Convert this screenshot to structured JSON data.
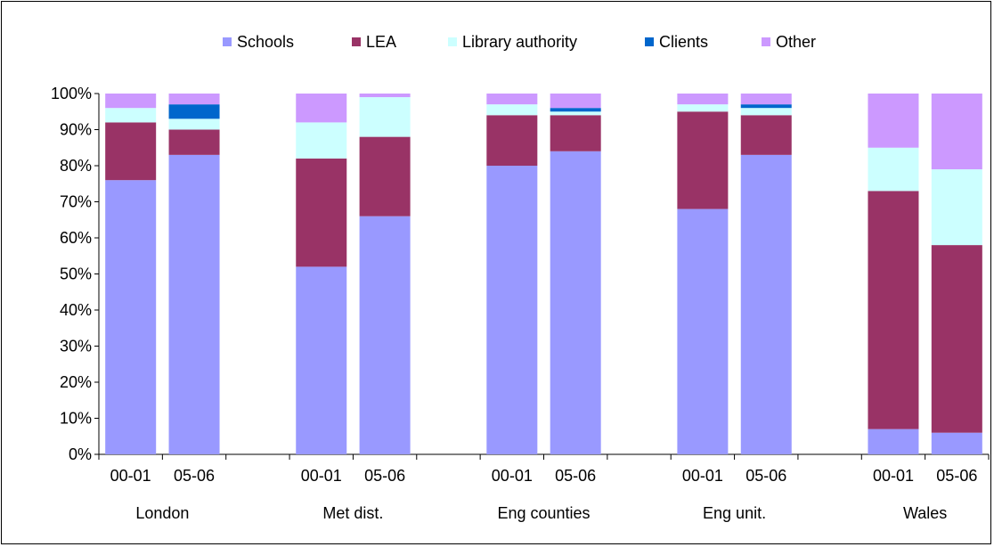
{
  "chart_data": {
    "type": "bar",
    "stacked": true,
    "percent": true,
    "title": "",
    "xlabel": "",
    "ylabel": "",
    "ylim": [
      0,
      100
    ],
    "yticks": [
      "0%",
      "10%",
      "20%",
      "30%",
      "40%",
      "50%",
      "60%",
      "70%",
      "80%",
      "90%",
      "100%"
    ],
    "grid": false,
    "legend_position": "top",
    "groups": [
      "London",
      "Met dist.",
      "Eng counties",
      "Eng unit.",
      "Wales"
    ],
    "periods": [
      "00-01",
      "05-06"
    ],
    "categories": [
      "London 00-01",
      "London 05-06",
      "Met dist. 00-01",
      "Met dist. 05-06",
      "Eng counties 00-01",
      "Eng counties 05-06",
      "Eng unit. 00-01",
      "Eng unit. 05-06",
      "Wales 00-01",
      "Wales 05-06"
    ],
    "series": [
      {
        "name": "Schools",
        "color": "#9999ff",
        "values": [
          76,
          83,
          52,
          66,
          80,
          84,
          68,
          83,
          7,
          6
        ]
      },
      {
        "name": "LEA",
        "color": "#993366",
        "values": [
          16,
          7,
          30,
          22,
          14,
          10,
          27,
          11,
          66,
          52
        ]
      },
      {
        "name": "Library authority",
        "color": "#ccffff",
        "values": [
          4,
          3,
          10,
          11,
          3,
          1,
          2,
          2,
          12,
          21
        ]
      },
      {
        "name": "Clients",
        "color": "#0066cc",
        "values": [
          0,
          4,
          0,
          0,
          0,
          1,
          0,
          1,
          0,
          0
        ]
      },
      {
        "name": "Other",
        "color": "#cc99ff",
        "values": [
          4,
          3,
          8,
          1,
          3,
          4,
          3,
          3,
          15,
          21
        ]
      }
    ]
  }
}
